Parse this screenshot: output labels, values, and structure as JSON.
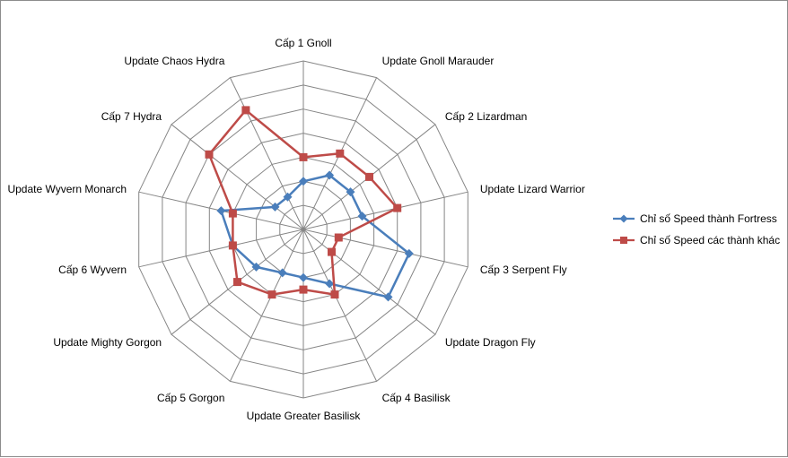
{
  "chart_data": {
    "type": "radar",
    "categories": [
      "Cấp 1 Gnoll",
      "Update Gnoll Marauder",
      "Cấp 2 Lizardman",
      "Update Lizard Warrior",
      "Cấp 3 Serpent Fly",
      "Update Dragon Fly",
      "Cấp 4 Basilisk",
      "Update Greater Basilisk",
      "Cấp 5 Gorgon",
      "Update Mighty Gorgon",
      "Cấp 6 Wyvern",
      "Update Wyvern Monarch",
      "Cấp 7 Hydra",
      "Update Chaos Hydra"
    ],
    "series": [
      {
        "name": "Chỉ số Speed  thành Fortress",
        "color": "#4a7ebb",
        "marker": "diamond",
        "values": [
          4,
          5,
          5,
          5,
          9,
          9,
          5,
          4,
          4,
          5,
          6,
          7,
          3,
          3
        ]
      },
      {
        "name": "Chỉ số Speed  các thành khác",
        "color": "#be4b48",
        "marker": "square",
        "values": [
          6,
          7,
          7,
          8,
          3,
          3,
          6,
          5,
          6,
          7,
          6,
          6,
          10,
          11
        ]
      }
    ],
    "rlim": [
      0,
      14
    ],
    "gridlines": true,
    "legend": "right"
  }
}
